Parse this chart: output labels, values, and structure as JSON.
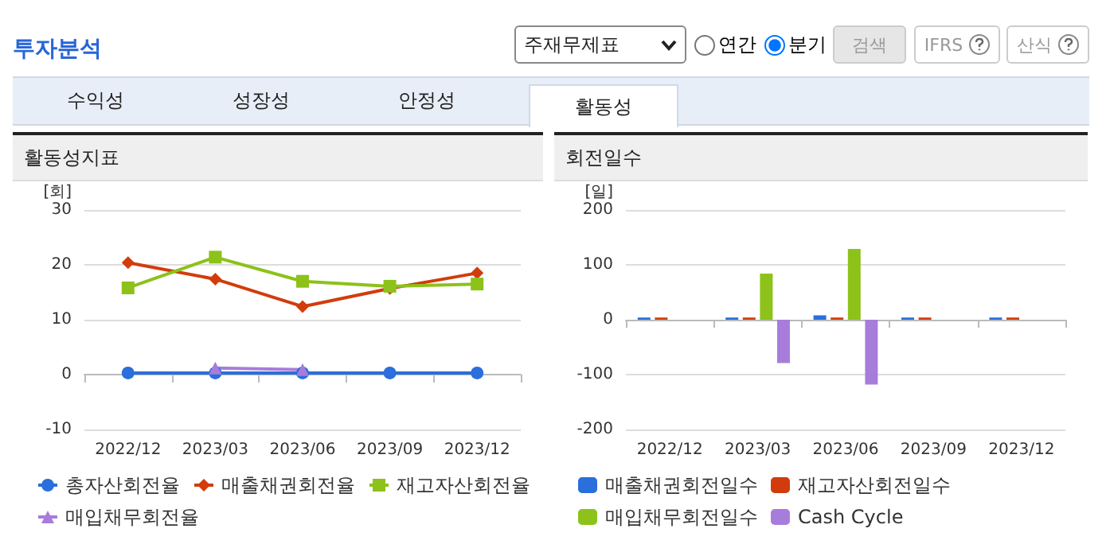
{
  "chart_data": [
    {
      "type": "other",
      "title": "투자분석",
      "annotations": [
        "주재무제표",
        "연간",
        "분기",
        "검색",
        "IFRS",
        "산식",
        "수익성",
        "성장성",
        "안정성",
        "활동성"
      ]
    },
    {
      "type": "line",
      "title": "활동성지표",
      "ylabel": "[회]",
      "categories": [
        "2022/12",
        "2023/03",
        "2023/06",
        "2023/09",
        "2023/12"
      ],
      "ylim": [
        -10,
        30
      ],
      "yticks": [
        -10,
        0,
        10,
        20,
        30
      ],
      "grid": "y",
      "legend": "bottom",
      "line_style": "solid",
      "series": [
        {
          "name": "총자산회전율",
          "color": "#2a6fdb",
          "marker": "circle",
          "values": [
            0.3,
            0.3,
            0.3,
            0.3,
            0.3
          ]
        },
        {
          "name": "매출채권회전율",
          "color": "#d23c0c",
          "marker": "diamond",
          "values": [
            20.4,
            17.4,
            12.4,
            15.7,
            18.5
          ]
        },
        {
          "name": "재고자산회전율",
          "color": "#8cc21a",
          "marker": "square",
          "values": [
            15.8,
            21.4,
            17.0,
            16.1,
            16.5
          ]
        },
        {
          "name": "매입채무회전율",
          "color": "#a77ddb",
          "marker": "triangle",
          "values": [
            null,
            1.2,
            0.9,
            null,
            null
          ]
        }
      ]
    },
    {
      "type": "bar",
      "title": "회전일수",
      "ylabel": "[일]",
      "categories": [
        "2022/12",
        "2023/03",
        "2023/06",
        "2023/09",
        "2023/12"
      ],
      "ylim": [
        -200,
        200
      ],
      "yticks": [
        -200,
        -100,
        0,
        100,
        200
      ],
      "grid": "y",
      "legend": "bottom",
      "series": [
        {
          "name": "매출채권회전일수",
          "color": "#2a6fdb",
          "values": [
            4,
            4,
            8,
            4,
            4
          ]
        },
        {
          "name": "재고자산회전일수",
          "color": "#d23c0c",
          "values": [
            4,
            4,
            4,
            4,
            4
          ]
        },
        {
          "name": "매입채무회전일수",
          "color": "#8cc21a",
          "values": [
            null,
            84,
            129,
            null,
            null
          ]
        },
        {
          "name": "Cash Cycle",
          "color": "#a77ddb",
          "values": [
            null,
            -79,
            -118,
            null,
            null
          ]
        }
      ]
    }
  ]
}
